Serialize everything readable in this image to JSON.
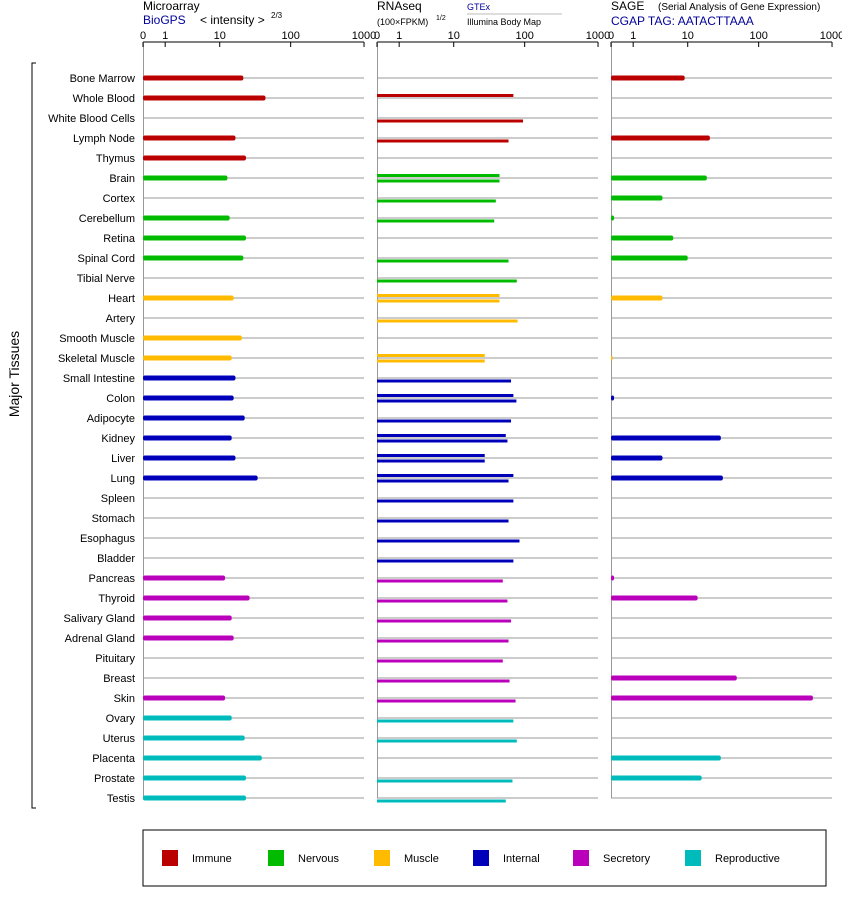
{
  "colors": {
    "Immune": "#bb0000",
    "Nervous": "#00bb00",
    "Muscle": "#ffbb00",
    "Internal": "#0000bb",
    "Secretory": "#bb00bb",
    "Reproductive": "#00bbbb",
    "link": "#000099",
    "gridline": "#999999"
  },
  "group_title": "Major Tissues",
  "legend": [
    "Immune",
    "Nervous",
    "Muscle",
    "Internal",
    "Secretory",
    "Reproductive"
  ],
  "panels": {
    "microarray": {
      "title": "Microarray",
      "subtitle_link": "BioGPS",
      "subtitle_text": "< intensity >",
      "subtitle_exp": "2/3",
      "ticks": [
        "0",
        "1",
        "10",
        "100",
        "1000"
      ]
    },
    "rnaseq": {
      "title": "RNAseq",
      "unit": "(100×FPKM)",
      "unit_exp": "1/2",
      "source_link": "GTEx",
      "source_text": "Illumina Body Map",
      "ticks": [
        "0",
        "1",
        "10",
        "100",
        "1000"
      ]
    },
    "sage": {
      "title": "SAGE",
      "title_note": "(Serial Analysis of Gene Expression)",
      "tag_line": "CGAP TAG: AATACTTAAA",
      "ticks": [
        "0",
        "1",
        "10",
        "100",
        "1000"
      ]
    }
  },
  "chart_data": {
    "type": "bar",
    "orientation": "horizontal",
    "xscale": "log1p",
    "xlim": [
      0,
      1000
    ],
    "ylabel": "Major Tissues",
    "categories": [
      "Bone Marrow",
      "Whole Blood",
      "White Blood Cells",
      "Lymph Node",
      "Thymus",
      "Brain",
      "Cortex",
      "Cerebellum",
      "Retina",
      "Spinal Cord",
      "Tibial Nerve",
      "Heart",
      "Artery",
      "Smooth Muscle",
      "Skeletal Muscle",
      "Small Intestine",
      "Colon",
      "Adipocyte",
      "Kidney",
      "Liver",
      "Lung",
      "Spleen",
      "Stomach",
      "Esophagus",
      "Bladder",
      "Pancreas",
      "Thyroid",
      "Salivary Gland",
      "Adrenal Gland",
      "Pituitary",
      "Breast",
      "Skin",
      "Ovary",
      "Uterus",
      "Placenta",
      "Prostate",
      "Testis"
    ],
    "category_groups": [
      "Immune",
      "Immune",
      "Immune",
      "Immune",
      "Immune",
      "Nervous",
      "Nervous",
      "Nervous",
      "Nervous",
      "Nervous",
      "Nervous",
      "Muscle",
      "Muscle",
      "Muscle",
      "Muscle",
      "Internal",
      "Internal",
      "Internal",
      "Internal",
      "Internal",
      "Internal",
      "Internal",
      "Internal",
      "Internal",
      "Internal",
      "Secretory",
      "Secretory",
      "Secretory",
      "Secretory",
      "Secretory",
      "Secretory",
      "Secretory",
      "Reproductive",
      "Reproductive",
      "Reproductive",
      "Reproductive",
      "Reproductive"
    ],
    "series": [
      {
        "name": "Microarray",
        "values": [
          22,
          45,
          null,
          17,
          24,
          13,
          null,
          14,
          24,
          22,
          null,
          16,
          null,
          21,
          15,
          17,
          16,
          23,
          15,
          17,
          35,
          null,
          null,
          null,
          null,
          12,
          27,
          15,
          16,
          null,
          null,
          12,
          15,
          23,
          40,
          24,
          24
        ]
      },
      {
        "name": "RNAseq GTEx",
        "values": [
          null,
          70,
          null,
          null,
          null,
          45,
          null,
          null,
          null,
          null,
          null,
          45,
          null,
          null,
          28,
          null,
          70,
          null,
          55,
          28,
          70,
          null,
          null,
          null,
          null,
          null,
          null,
          null,
          null,
          null,
          null,
          null,
          null,
          null,
          null,
          null,
          null
        ]
      },
      {
        "name": "RNAseq Illumina Body Map",
        "values": [
          null,
          null,
          95,
          60,
          null,
          45,
          40,
          38,
          null,
          60,
          78,
          45,
          80,
          null,
          28,
          65,
          77,
          65,
          58,
          28,
          60,
          70,
          60,
          85,
          70,
          50,
          58,
          65,
          60,
          50,
          62,
          75,
          70,
          78,
          null,
          68,
          55
        ]
      },
      {
        "name": "SAGE",
        "values": [
          9,
          null,
          null,
          21,
          null,
          19,
          4,
          0.1,
          6,
          10,
          null,
          4,
          null,
          null,
          0.05,
          null,
          0.1,
          null,
          30,
          4,
          32,
          null,
          null,
          null,
          null,
          0.1,
          14,
          null,
          null,
          null,
          50,
          550,
          null,
          null,
          30,
          16,
          null
        ]
      }
    ]
  }
}
